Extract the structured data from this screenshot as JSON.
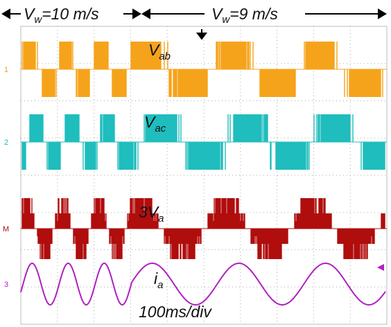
{
  "header": {
    "left": {
      "symbol": "V",
      "sub": "w",
      "rest": "=10 m/s"
    },
    "right": {
      "symbol": "V",
      "sub": "w",
      "rest": "=9 m/s"
    }
  },
  "traces": [
    {
      "channel": "1",
      "label": {
        "symbol": "V",
        "sub": "ab"
      }
    },
    {
      "channel": "2",
      "label": {
        "symbol": "V",
        "sub": "ac"
      }
    },
    {
      "channel": "M",
      "label": {
        "symbol": "3V",
        "sub": "a"
      }
    },
    {
      "channel": "3",
      "label": {
        "symbol": "i",
        "sub": "a"
      }
    }
  ],
  "timebase": "100ms/div"
}
